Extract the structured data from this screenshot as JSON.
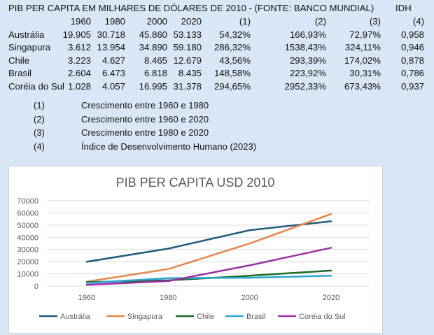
{
  "table": {
    "title": "PIB PER CAPITA EM MILHARES DE DÓLARES DE 2010 - (FONTE: BANCO MUNDIAL)",
    "idh_header": "IDH",
    "headers": [
      "1960",
      "1980",
      "2000",
      "2020",
      "(1)",
      "(2)",
      "(3)",
      "(4)"
    ],
    "rows": [
      {
        "name": "Austrália",
        "cells": [
          "19.905",
          "30.718",
          "45.860",
          "53.133",
          "54,32%",
          "166,93%",
          "72,97%",
          "0,958"
        ]
      },
      {
        "name": "Singapura",
        "cells": [
          "3.612",
          "13.954",
          "34.890",
          "59.180",
          "286,32%",
          "1538,43%",
          "324,11%",
          "0,946"
        ]
      },
      {
        "name": "Chile",
        "cells": [
          "3.223",
          "4.627",
          "8.465",
          "12.679",
          "43,56%",
          "293,39%",
          "174,02%",
          "0,878"
        ]
      },
      {
        "name": "Brasil",
        "cells": [
          "2.604",
          "6.473",
          "6.818",
          "8.435",
          "148,58%",
          "223,92%",
          "30,31%",
          "0,786"
        ]
      },
      {
        "name": "Coréia do Sul",
        "cells": [
          "1.028",
          "4.057",
          "16.995",
          "31.378",
          "294,65%",
          "2952,33%",
          "673,43%",
          "0,937"
        ]
      }
    ]
  },
  "notes": [
    {
      "num": "(1)",
      "text": "Crescimento entre 1960 e 1980"
    },
    {
      "num": "(2)",
      "text": "Crescimento entre 1960 e 2020"
    },
    {
      "num": "(3)",
      "text": "Crescimento entre 1980 e 2020"
    },
    {
      "num": "(4)",
      "text": "Índice de Desenvolvimento Humano (2023)"
    }
  ],
  "chart_data": {
    "type": "line",
    "title": "PIB PER CAPITA USD 2010",
    "x": [
      "1960",
      "1980",
      "2000",
      "2020"
    ],
    "ylim": [
      0,
      70000
    ],
    "yticks": [
      0,
      10000,
      20000,
      30000,
      40000,
      50000,
      60000,
      70000
    ],
    "grid": true,
    "legend": "bottom",
    "series": [
      {
        "name": "Austrália",
        "color": "#1f5c7a",
        "values": [
          19905,
          30718,
          45860,
          53133
        ]
      },
      {
        "name": "Singapura",
        "color": "#e8864a",
        "values": [
          3612,
          13954,
          34890,
          59180
        ]
      },
      {
        "name": "Chile",
        "color": "#1e6b25",
        "values": [
          3223,
          4627,
          8465,
          12679
        ]
      },
      {
        "name": "Brasil",
        "color": "#2aa6d1",
        "values": [
          2604,
          6473,
          6818,
          8435
        ]
      },
      {
        "name": "Coréia do Sul",
        "color": "#9b2fa6",
        "values": [
          1028,
          4057,
          16995,
          31378
        ]
      }
    ]
  }
}
